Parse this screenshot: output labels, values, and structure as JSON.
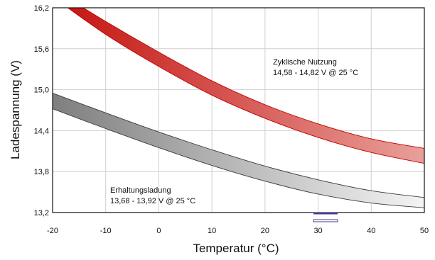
{
  "chart_data": {
    "type": "area",
    "xlabel": "Temperatur (°C)",
    "ylabel": "Ladespannung (V)",
    "xlim": [
      -20,
      50
    ],
    "ylim": [
      13.2,
      16.2
    ],
    "x_ticks": [
      "-20",
      "-10",
      "0",
      "10",
      "20",
      "30",
      "40",
      "50"
    ],
    "y_ticks": [
      "16,2",
      "15,6",
      "15,0",
      "14,4",
      "13,8",
      "13,2"
    ],
    "grid": true,
    "series": [
      {
        "name": "Zyklische Nutzung",
        "x": [
          -20,
          -10,
          0,
          10,
          20,
          30,
          40,
          50
        ],
        "upper": [
          16.48,
          16.0,
          15.55,
          15.13,
          14.78,
          14.5,
          14.28,
          14.14
        ],
        "lower": [
          16.36,
          15.81,
          15.34,
          14.92,
          14.58,
          14.3,
          14.08,
          13.92
        ],
        "color_dark": "#c4120e",
        "color_light": "#e8a09b",
        "stroke": "#c00000"
      },
      {
        "name": "Erhaltungsladung",
        "x": [
          -20,
          -10,
          0,
          10,
          20,
          30,
          40,
          50
        ],
        "upper": [
          14.95,
          14.66,
          14.38,
          14.12,
          13.88,
          13.68,
          13.52,
          13.42
        ],
        "lower": [
          14.72,
          14.43,
          14.15,
          13.89,
          13.66,
          13.47,
          13.34,
          13.27
        ],
        "color_dark": "#7f7f7f",
        "color_light": "#f4f4f4",
        "stroke": "#3a3a3a"
      }
    ],
    "annotations": [
      {
        "line1": "Zyklische Nutzung",
        "line2": "14,58 - 14,82 V @ 25 °C"
      },
      {
        "line1": "Erhaltungsladung",
        "line2": "13,68 - 13,92 V @ 25 °C"
      }
    ]
  }
}
